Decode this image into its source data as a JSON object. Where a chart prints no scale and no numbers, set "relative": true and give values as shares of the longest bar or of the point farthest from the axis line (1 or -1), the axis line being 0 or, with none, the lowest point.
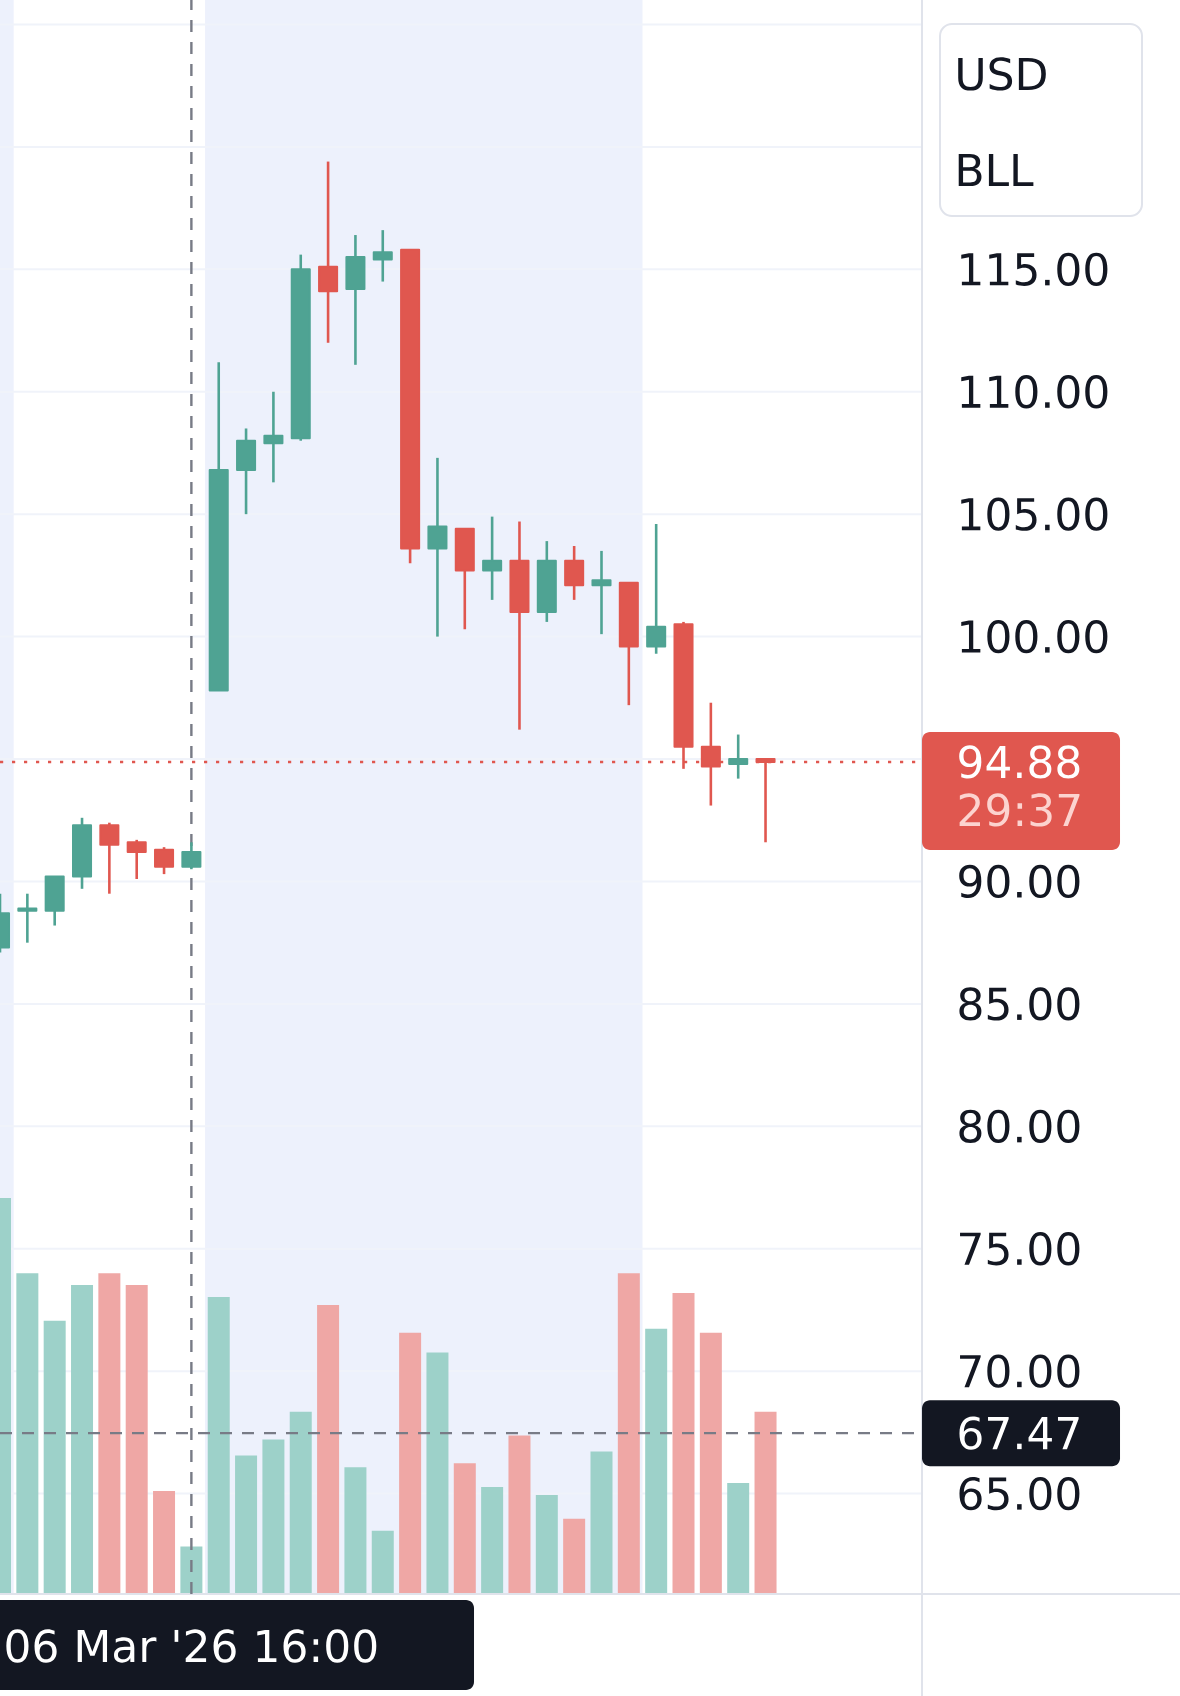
{
  "chart_data": [
    {
      "type": "candlestick",
      "categories": [
        null,
        null,
        null,
        null,
        null,
        null,
        null,
        "06 Mar '26 16:00",
        null,
        null,
        null,
        null,
        null,
        null,
        null,
        null,
        null,
        null,
        null,
        null,
        null,
        null,
        null,
        null,
        null,
        null,
        null,
        null,
        null
      ],
      "ohlc": [
        [
          87.3,
          89.5,
          87.1,
          88.7
        ],
        [
          88.8,
          89.5,
          87.5,
          88.9
        ],
        [
          88.8,
          90.2,
          88.2,
          90.2
        ],
        [
          90.2,
          92.6,
          89.7,
          92.3
        ],
        [
          92.3,
          92.4,
          89.5,
          91.5
        ],
        [
          91.6,
          91.7,
          90.1,
          91.2
        ],
        [
          91.3,
          91.4,
          90.3,
          90.6
        ],
        [
          90.6,
          91.6,
          90.5,
          91.2
        ],
        [
          97.8,
          111.2,
          97.8,
          106.8
        ],
        [
          106.8,
          108.5,
          105.0,
          108.0
        ],
        [
          107.9,
          110.0,
          106.3,
          108.2
        ],
        [
          108.1,
          115.6,
          108.0,
          115.0
        ],
        [
          115.1,
          119.4,
          112.0,
          114.1
        ],
        [
          114.2,
          116.4,
          111.1,
          115.5
        ],
        [
          115.4,
          116.6,
          114.5,
          115.7
        ],
        [
          115.8,
          115.8,
          103.0,
          103.6
        ],
        [
          103.6,
          107.3,
          100.0,
          104.5
        ],
        [
          104.4,
          104.4,
          100.3,
          102.7
        ],
        [
          102.7,
          104.9,
          101.5,
          103.1
        ],
        [
          103.1,
          104.7,
          96.2,
          101.0
        ],
        [
          101.0,
          103.9,
          100.6,
          103.1
        ],
        [
          103.1,
          103.7,
          101.5,
          102.1
        ],
        [
          102.1,
          103.5,
          100.1,
          102.3
        ],
        [
          102.2,
          102.2,
          97.2,
          99.6
        ],
        [
          99.6,
          104.6,
          99.3,
          100.4
        ],
        [
          100.5,
          100.6,
          94.6,
          95.5
        ],
        [
          95.5,
          97.3,
          93.1,
          94.7
        ],
        [
          94.8,
          96.0,
          94.2,
          95.0
        ],
        [
          95.0,
          95.0,
          91.6,
          94.88
        ]
      ],
      "colors": [
        "#4fa393",
        "#4fa393",
        "#4fa393",
        "#4fa393",
        "#e0574f",
        "#e0574f",
        "#e0574f",
        "#4fa393",
        "#4fa393",
        "#4fa393",
        "#4fa393",
        "#4fa393",
        "#e0574f",
        "#4fa393",
        "#4fa393",
        "#e0574f",
        "#4fa393",
        "#e0574f",
        "#4fa393",
        "#e0574f",
        "#4fa393",
        "#e0574f",
        "#4fa393",
        "#e0574f",
        "#4fa393",
        "#e0574f",
        "#e0574f",
        "#4fa393",
        "#e0574f"
      ],
      "ylim": [
        60.9,
        126.0
      ],
      "yticks": [
        {
          "value": 65,
          "label": "65.00"
        },
        {
          "value": 70,
          "label": "70.00"
        },
        {
          "value": 75,
          "label": "75.00"
        },
        {
          "value": 80,
          "label": "80.00"
        },
        {
          "value": 85,
          "label": "85.00"
        },
        {
          "value": 90,
          "label": "90.00"
        },
        {
          "value": 95,
          "label": null
        },
        {
          "value": 100,
          "label": "100.00"
        },
        {
          "value": 105,
          "label": "105.00"
        },
        {
          "value": 110,
          "label": "110.00"
        },
        {
          "value": 115,
          "label": "115.00"
        },
        {
          "value": 120,
          "label": null
        },
        {
          "value": 125,
          "label": null
        }
      ],
      "grid": "y",
      "ref_lines": [
        {
          "axis": "y",
          "value": 94.88,
          "label": "94.88",
          "color": "#e0574f",
          "line_style": "dotted"
        },
        {
          "axis": "y",
          "value": 67.47,
          "label": "67.47",
          "color": "#787b86",
          "line_style": "dashed"
        },
        {
          "axis": "x",
          "value": "06 Mar '26 16:00",
          "color": "#787b86",
          "line_style": "dashed"
        }
      ],
      "annotations": [
        "29:37",
        "USD",
        "BLL"
      ]
    },
    {
      "type": "bar",
      "categories": [
        null,
        null,
        null,
        null,
        null,
        null,
        null,
        null,
        null,
        null,
        null,
        null,
        null,
        null,
        null,
        null,
        null,
        null,
        null,
        null,
        null,
        null,
        null,
        null,
        null,
        null,
        null,
        null,
        null
      ],
      "values": [
        1.0,
        0.81,
        0.69,
        0.78,
        0.81,
        0.78,
        0.26,
        0.12,
        0.75,
        0.35,
        0.39,
        0.46,
        0.73,
        0.32,
        0.16,
        0.66,
        0.61,
        0.33,
        0.27,
        0.4,
        0.25,
        0.19,
        0.36,
        0.81,
        0.67,
        0.76,
        0.66,
        0.28,
        0.46
      ],
      "colors": [
        "#9dd1c9",
        "#9dd1c9",
        "#9dd1c9",
        "#9dd1c9",
        "#efa7a5",
        "#efa7a5",
        "#efa7a5",
        "#9dd1c9",
        "#9dd1c9",
        "#9dd1c9",
        "#9dd1c9",
        "#9dd1c9",
        "#efa7a5",
        "#9dd1c9",
        "#9dd1c9",
        "#efa7a5",
        "#9dd1c9",
        "#efa7a5",
        "#9dd1c9",
        "#efa7a5",
        "#9dd1c9",
        "#efa7a5",
        "#9dd1c9",
        "#efa7a5",
        "#9dd1c9",
        "#efa7a5",
        "#efa7a5",
        "#9dd1c9",
        "#efa7a5"
      ],
      "relative": true
    }
  ]
}
